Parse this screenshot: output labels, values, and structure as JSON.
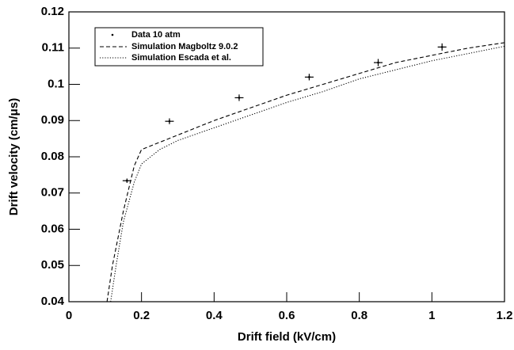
{
  "chart_data": {
    "type": "line",
    "xlabel": "Drift field (kV/cm)",
    "ylabel": "Drift velocity (cm/μs)",
    "xlim": [
      0,
      1.2
    ],
    "ylim": [
      0.04,
      0.12
    ],
    "xticks": [
      0,
      0.2,
      0.4,
      0.6,
      0.8,
      1,
      1.2
    ],
    "yticks": [
      0.04,
      0.05,
      0.06,
      0.07,
      0.08,
      0.09,
      0.1,
      0.11,
      0.12
    ],
    "points": {
      "name": "Data 10 atm",
      "color": "#000000",
      "x": [
        0.16,
        0.277,
        0.469,
        0.662,
        0.852,
        1.028
      ],
      "values": [
        0.0734,
        0.0898,
        0.0963,
        0.102,
        0.106,
        0.1103
      ],
      "xerr": [
        0.012,
        0.012,
        0.012,
        0.012,
        0.012,
        0.012
      ],
      "yerr": [
        0.0006,
        0.0008,
        0.0009,
        0.0009,
        0.001,
        0.001
      ]
    },
    "series": [
      {
        "name": "Simulation Magboltz 9.0.2",
        "color": "#000000",
        "style": "dashed",
        "x": [
          0.105,
          0.12,
          0.14,
          0.15,
          0.18,
          0.2,
          0.25,
          0.3,
          0.4,
          0.5,
          0.6,
          0.7,
          0.8,
          0.9,
          1.0,
          1.1,
          1.2
        ],
        "values": [
          0.04,
          0.05,
          0.06,
          0.065,
          0.0775,
          0.082,
          0.084,
          0.086,
          0.09,
          0.0935,
          0.097,
          0.1,
          0.103,
          0.106,
          0.108,
          0.11,
          0.1115
        ]
      },
      {
        "name": "Simulation Escada et al.",
        "color": "#000000",
        "style": "dotted",
        "x": [
          0.115,
          0.13,
          0.15,
          0.18,
          0.2,
          0.25,
          0.3,
          0.4,
          0.5,
          0.6,
          0.7,
          0.8,
          0.9,
          1.0,
          1.1,
          1.2
        ],
        "values": [
          0.04,
          0.05,
          0.062,
          0.073,
          0.078,
          0.082,
          0.0845,
          0.088,
          0.0915,
          0.095,
          0.098,
          0.1015,
          0.104,
          0.1065,
          0.1085,
          0.1105
        ]
      }
    ]
  }
}
